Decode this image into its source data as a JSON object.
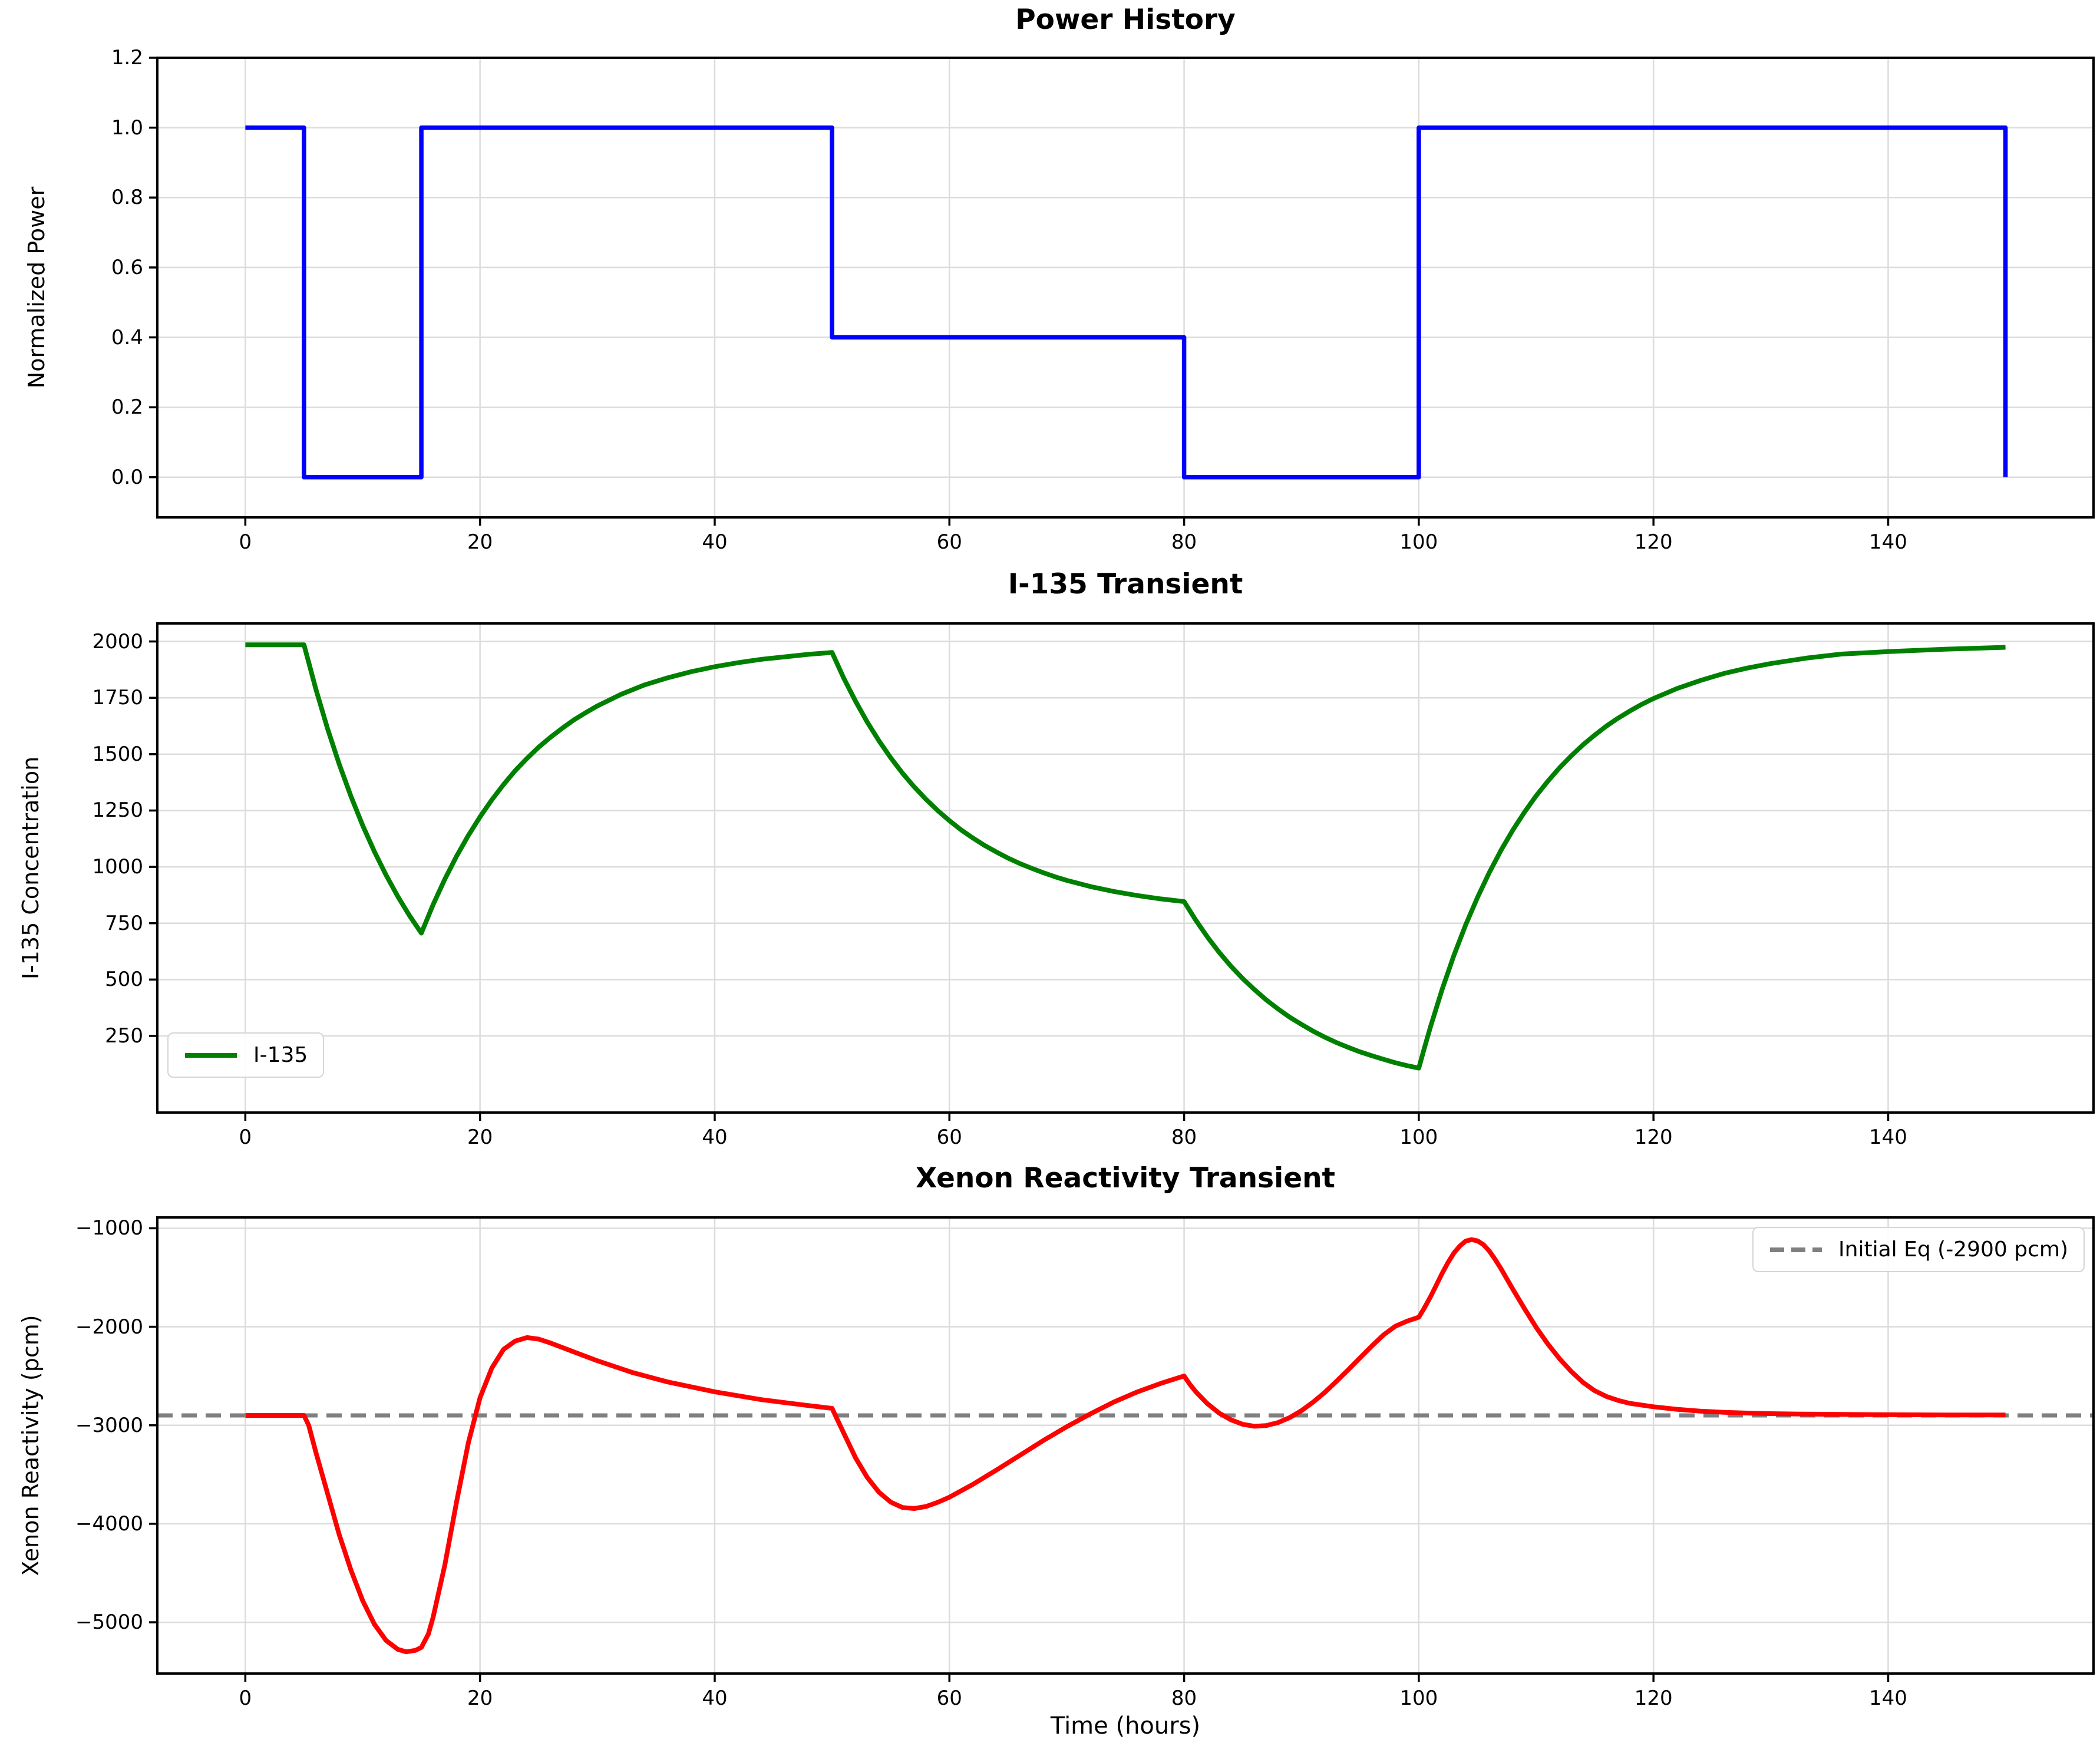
{
  "colors": {
    "power": "#0000ff",
    "iodine": "#008000",
    "xenon": "#ff0000",
    "reference": "#7f7f7f",
    "grid": "#dcdcdc",
    "spine": "#000000",
    "text": "#000000",
    "background": "#ffffff"
  },
  "xlabel": "Time (hours)",
  "chart_data": [
    {
      "id": "power-history",
      "type": "line",
      "title": "Power History",
      "ylabel": "Normalized Power",
      "xlabel": "",
      "grid": true,
      "legend": null,
      "xlim": [
        -7.5,
        157.5
      ],
      "ylim": [
        -0.115,
        1.2
      ],
      "xtick_values": [
        0,
        20,
        40,
        60,
        80,
        100,
        120,
        140
      ],
      "xtick_labels": [
        "0",
        "20",
        "40",
        "60",
        "80",
        "100",
        "120",
        "140"
      ],
      "ytick_values": [
        0.0,
        0.2,
        0.4,
        0.6,
        0.8,
        1.0,
        1.2
      ],
      "ytick_labels": [
        "0.0",
        "0.2",
        "0.4",
        "0.6",
        "0.8",
        "1.0",
        "1.2"
      ],
      "series": [
        {
          "name": "power",
          "color": "#0000ff",
          "width": 7.5,
          "dash": null,
          "points": [
            [
              0,
              1
            ],
            [
              5,
              1
            ],
            [
              5,
              0
            ],
            [
              15,
              0
            ],
            [
              15,
              1
            ],
            [
              50,
              1
            ],
            [
              50,
              0.4
            ],
            [
              80,
              0.4
            ],
            [
              80,
              0
            ],
            [
              100,
              0
            ],
            [
              100,
              1
            ],
            [
              150,
              1
            ],
            [
              150,
              0
            ]
          ]
        }
      ]
    },
    {
      "id": "i135-transient",
      "type": "line",
      "title": "I-135 Transient",
      "ylabel": "I-135 Concentration",
      "xlabel": "",
      "grid": true,
      "legend": {
        "label": "I-135",
        "position": "lower-left"
      },
      "xlim": [
        -7.5,
        157.5
      ],
      "ylim": [
        -90,
        2080
      ],
      "xtick_values": [
        0,
        20,
        40,
        60,
        80,
        100,
        120,
        140
      ],
      "xtick_labels": [
        "0",
        "20",
        "40",
        "60",
        "80",
        "100",
        "120",
        "140"
      ],
      "ytick_values": [
        250,
        500,
        750,
        1000,
        1250,
        1500,
        1750,
        2000
      ],
      "ytick_labels": [
        "250",
        "500",
        "750",
        "1000",
        "1250",
        "1500",
        "1750",
        "2000"
      ],
      "series": [
        {
          "name": "I-135",
          "color": "#008000",
          "width": 8,
          "dash": null,
          "points": [
            [
              0,
              1985
            ],
            [
              5,
              1985
            ],
            [
              5.5,
              1888
            ],
            [
              6,
              1790
            ],
            [
              7,
              1614
            ],
            [
              8,
              1456
            ],
            [
              9,
              1313
            ],
            [
              10,
              1184
            ],
            [
              11,
              1068
            ],
            [
              12,
              963
            ],
            [
              13,
              868
            ],
            [
              14,
              783
            ],
            [
              15,
              706
            ],
            [
              16,
              832
            ],
            [
              17,
              945
            ],
            [
              18,
              1047
            ],
            [
              19,
              1139
            ],
            [
              20,
              1222
            ],
            [
              21,
              1297
            ],
            [
              22,
              1365
            ],
            [
              23,
              1427
            ],
            [
              24,
              1481
            ],
            [
              25,
              1531
            ],
            [
              26,
              1575
            ],
            [
              27,
              1615
            ],
            [
              28,
              1652
            ],
            [
              29,
              1684
            ],
            [
              30,
              1714
            ],
            [
              32,
              1765
            ],
            [
              34,
              1807
            ],
            [
              36,
              1839
            ],
            [
              38,
              1866
            ],
            [
              40,
              1888
            ],
            [
              42,
              1906
            ],
            [
              44,
              1921
            ],
            [
              46,
              1932
            ],
            [
              48,
              1943
            ],
            [
              50,
              1951
            ],
            [
              51,
              1837
            ],
            [
              52,
              1735
            ],
            [
              53,
              1642
            ],
            [
              54,
              1559
            ],
            [
              55,
              1484
            ],
            [
              56,
              1416
            ],
            [
              57,
              1355
            ],
            [
              58,
              1300
            ],
            [
              59,
              1250
            ],
            [
              60,
              1205
            ],
            [
              61,
              1164
            ],
            [
              62,
              1128
            ],
            [
              63,
              1095
            ],
            [
              64,
              1066
            ],
            [
              65,
              1039
            ],
            [
              66,
              1015
            ],
            [
              67,
              994
            ],
            [
              68,
              974
            ],
            [
              69,
              956
            ],
            [
              70,
              940
            ],
            [
              72,
              913
            ],
            [
              74,
              891
            ],
            [
              76,
              873
            ],
            [
              78,
              858
            ],
            [
              80,
              846
            ],
            [
              81,
              763
            ],
            [
              82,
              688
            ],
            [
              83,
              620
            ],
            [
              84,
              559
            ],
            [
              85,
              504
            ],
            [
              86,
              455
            ],
            [
              87,
              410
            ],
            [
              88,
              370
            ],
            [
              89,
              333
            ],
            [
              90,
              301
            ],
            [
              91,
              271
            ],
            [
              92,
              244
            ],
            [
              93,
              220
            ],
            [
              94,
              199
            ],
            [
              95,
              179
            ],
            [
              96,
              162
            ],
            [
              97,
              146
            ],
            [
              98,
              131
            ],
            [
              99,
              118
            ],
            [
              100,
              107
            ],
            [
              100.5,
              200
            ],
            [
              101,
              291
            ],
            [
              102,
              458
            ],
            [
              103,
              608
            ],
            [
              104,
              743
            ],
            [
              105,
              864
            ],
            [
              106,
              974
            ],
            [
              107,
              1073
            ],
            [
              108,
              1162
            ],
            [
              109,
              1242
            ],
            [
              110,
              1315
            ],
            [
              111,
              1380
            ],
            [
              112,
              1440
            ],
            [
              113,
              1493
            ],
            [
              114,
              1542
            ],
            [
              115,
              1585
            ],
            [
              116,
              1625
            ],
            [
              117,
              1660
            ],
            [
              118,
              1692
            ],
            [
              119,
              1721
            ],
            [
              120,
              1747
            ],
            [
              122,
              1791
            ],
            [
              124,
              1827
            ],
            [
              126,
              1858
            ],
            [
              128,
              1882
            ],
            [
              130,
              1902
            ],
            [
              133,
              1926
            ],
            [
              136,
              1944
            ],
            [
              140,
              1955
            ],
            [
              145,
              1966
            ],
            [
              150,
              1974
            ]
          ]
        }
      ]
    },
    {
      "id": "xenon-reactivity",
      "type": "line",
      "title": "Xenon Reactivity Transient",
      "ylabel": "Xenon Reactivity (pcm)",
      "xlabel": "Time (hours)",
      "grid": true,
      "legend": {
        "label": "Initial Eq (-2900 pcm)",
        "position": "upper-right"
      },
      "ref_line": {
        "value": -2900,
        "color": "#7f7f7f",
        "width": 7,
        "dash": "26 15"
      },
      "xlim": [
        -7.5,
        157.5
      ],
      "ylim": [
        -5520,
        -890
      ],
      "xtick_values": [
        0,
        20,
        40,
        60,
        80,
        100,
        120,
        140
      ],
      "xtick_labels": [
        "0",
        "20",
        "40",
        "60",
        "80",
        "100",
        "120",
        "140"
      ],
      "ytick_values": [
        -5000,
        -4000,
        -3000,
        -2000,
        -1000
      ],
      "ytick_labels": [
        "−5000",
        "−4000",
        "−3000",
        "−2000",
        "−1000"
      ],
      "series": [
        {
          "name": "Xenon reactivity",
          "color": "#ff0000",
          "width": 8,
          "dash": null,
          "points": [
            [
              0,
              -2900
            ],
            [
              5,
              -2900
            ],
            [
              5.4,
              -3000
            ],
            [
              6,
              -3270
            ],
            [
              7,
              -3690
            ],
            [
              8,
              -4110
            ],
            [
              9,
              -4470
            ],
            [
              10,
              -4780
            ],
            [
              11,
              -5020
            ],
            [
              12,
              -5185
            ],
            [
              13,
              -5275
            ],
            [
              13.7,
              -5300
            ],
            [
              14.5,
              -5285
            ],
            [
              15,
              -5255
            ],
            [
              15.6,
              -5120
            ],
            [
              16,
              -4950
            ],
            [
              17,
              -4420
            ],
            [
              18,
              -3780
            ],
            [
              19,
              -3180
            ],
            [
              20,
              -2720
            ],
            [
              21,
              -2420
            ],
            [
              22,
              -2230
            ],
            [
              23,
              -2145
            ],
            [
              24,
              -2110
            ],
            [
              25,
              -2125
            ],
            [
              26,
              -2165
            ],
            [
              28,
              -2255
            ],
            [
              30,
              -2345
            ],
            [
              33,
              -2465
            ],
            [
              36,
              -2560
            ],
            [
              40,
              -2660
            ],
            [
              44,
              -2740
            ],
            [
              48,
              -2800
            ],
            [
              50,
              -2828
            ],
            [
              50.4,
              -2930
            ],
            [
              51,
              -3080
            ],
            [
              52,
              -3330
            ],
            [
              53,
              -3530
            ],
            [
              54,
              -3680
            ],
            [
              55,
              -3780
            ],
            [
              56,
              -3835
            ],
            [
              57,
              -3845
            ],
            [
              58,
              -3825
            ],
            [
              59,
              -3782
            ],
            [
              60,
              -3730
            ],
            [
              62,
              -3600
            ],
            [
              64,
              -3455
            ],
            [
              66,
              -3305
            ],
            [
              68,
              -3155
            ],
            [
              70,
              -3015
            ],
            [
              72,
              -2885
            ],
            [
              74,
              -2765
            ],
            [
              76,
              -2662
            ],
            [
              78,
              -2575
            ],
            [
              80,
              -2500
            ],
            [
              80.5,
              -2585
            ],
            [
              81,
              -2660
            ],
            [
              82,
              -2782
            ],
            [
              83,
              -2877
            ],
            [
              84,
              -2945
            ],
            [
              85,
              -2990
            ],
            [
              86,
              -3010
            ],
            [
              87,
              -3003
            ],
            [
              88,
              -2973
            ],
            [
              89,
              -2922
            ],
            [
              90,
              -2852
            ],
            [
              91,
              -2765
            ],
            [
              92,
              -2665
            ],
            [
              93,
              -2552
            ],
            [
              94,
              -2435
            ],
            [
              95,
              -2315
            ],
            [
              96,
              -2195
            ],
            [
              97,
              -2082
            ],
            [
              98,
              -1995
            ],
            [
              99,
              -1943
            ],
            [
              100,
              -1903
            ],
            [
              100.4,
              -1825
            ],
            [
              101,
              -1695
            ],
            [
              101.5,
              -1575
            ],
            [
              102,
              -1455
            ],
            [
              102.5,
              -1345
            ],
            [
              103,
              -1250
            ],
            [
              103.5,
              -1180
            ],
            [
              104,
              -1130
            ],
            [
              104.5,
              -1115
            ],
            [
              105,
              -1128
            ],
            [
              105.5,
              -1165
            ],
            [
              106,
              -1230
            ],
            [
              106.5,
              -1315
            ],
            [
              107,
              -1410
            ],
            [
              108,
              -1615
            ],
            [
              109,
              -1815
            ],
            [
              110,
              -2005
            ],
            [
              111,
              -2175
            ],
            [
              112,
              -2325
            ],
            [
              113,
              -2455
            ],
            [
              114,
              -2565
            ],
            [
              115,
              -2650
            ],
            [
              116,
              -2708
            ],
            [
              117,
              -2748
            ],
            [
              118,
              -2778
            ],
            [
              120,
              -2812
            ],
            [
              122,
              -2838
            ],
            [
              124,
              -2856
            ],
            [
              126,
              -2868
            ],
            [
              128,
              -2876
            ],
            [
              130,
              -2882
            ],
            [
              133,
              -2887
            ],
            [
              136,
              -2890
            ],
            [
              140,
              -2893
            ],
            [
              145,
              -2895
            ],
            [
              150,
              -2896
            ]
          ]
        }
      ]
    }
  ]
}
